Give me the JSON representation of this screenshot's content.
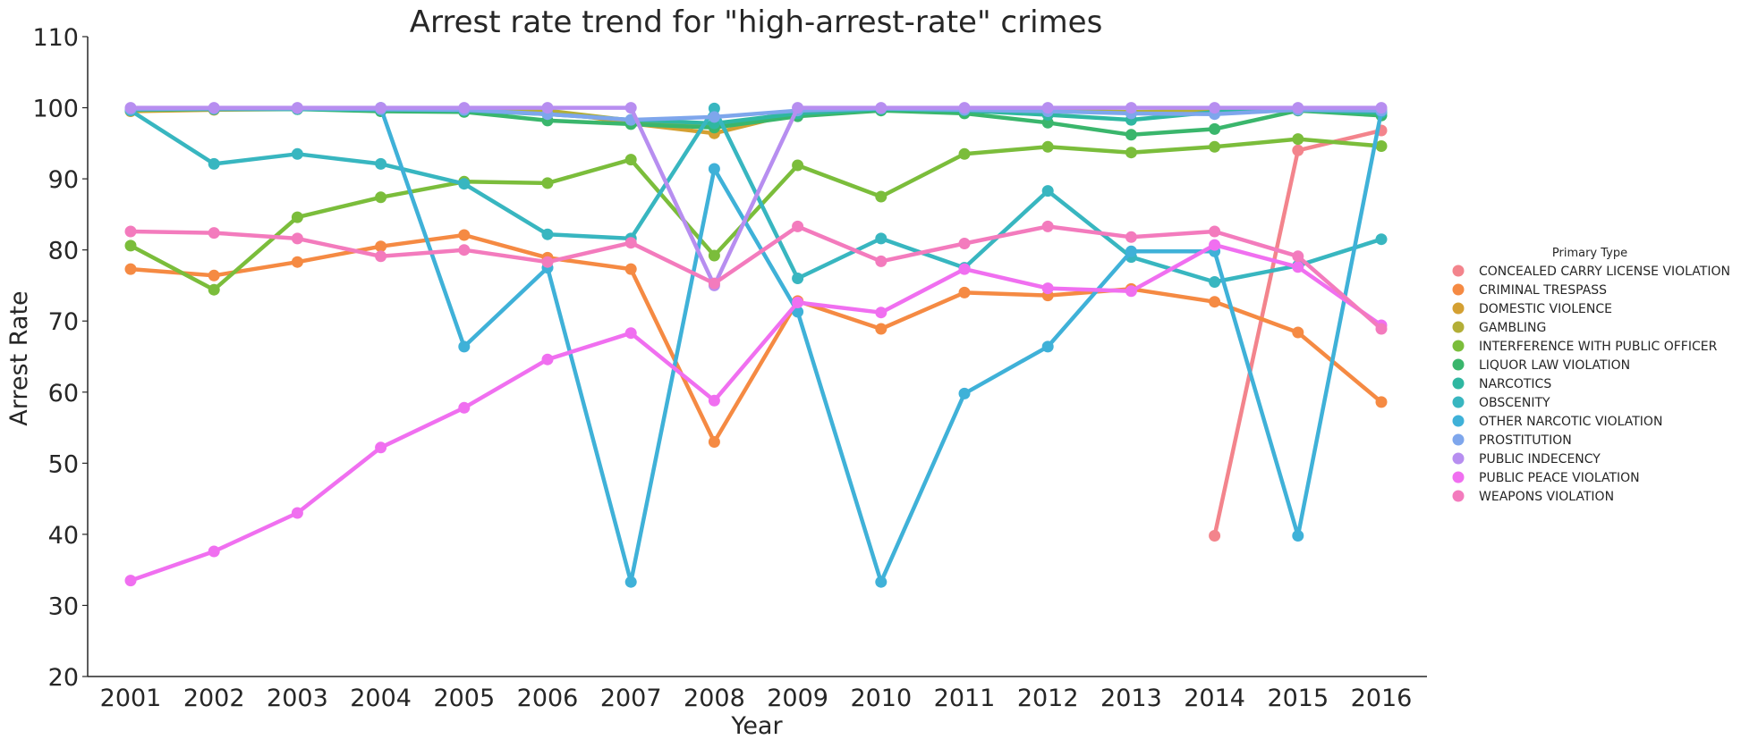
{
  "chart_data": {
    "type": "line",
    "title": "Arrest rate trend for \"high-arrest-rate\" crimes",
    "xlabel": "Year",
    "ylabel": "Arrest Rate",
    "ylim": [
      20,
      110
    ],
    "yticks": [
      20,
      30,
      40,
      50,
      60,
      70,
      80,
      90,
      100,
      110
    ],
    "categories": [
      "2001",
      "2002",
      "2003",
      "2004",
      "2005",
      "2006",
      "2007",
      "2008",
      "2009",
      "2010",
      "2011",
      "2012",
      "2013",
      "2014",
      "2015",
      "2016"
    ],
    "grid": false,
    "legend_title": "Primary Type",
    "legend_position": "right",
    "series": [
      {
        "name": "CONCEALED CARRY LICENSE VIOLATION",
        "color": "#f3848c",
        "values": [
          null,
          null,
          null,
          null,
          null,
          null,
          null,
          null,
          null,
          null,
          null,
          null,
          null,
          39.8,
          94,
          96.8
        ]
      },
      {
        "name": "CRIMINAL TRESPASS",
        "color": "#f58a43",
        "values": [
          77.3,
          76.4,
          78.3,
          80.5,
          82.1,
          78.9,
          77.3,
          53,
          72.8,
          68.9,
          74,
          73.6,
          74.5,
          72.7,
          68.4,
          58.6
        ]
      },
      {
        "name": "DOMESTIC VIOLENCE",
        "color": "#d4a032",
        "values": [
          99.5,
          99.7,
          99.8,
          99.8,
          99.7,
          99.6,
          97.8,
          96.4,
          99.3,
          99.8,
          99.7,
          99.5,
          99.3,
          99.5,
          99.8,
          99.6
        ]
      },
      {
        "name": "GAMBLING",
        "color": "#b3ae37",
        "values": [
          99.6,
          99.8,
          99.9,
          99.8,
          99.7,
          99.6,
          98.2,
          97.2,
          99.5,
          99.8,
          99.8,
          99.6,
          99.4,
          99.6,
          99.8,
          99.7
        ]
      },
      {
        "name": "INTERFERENCE WITH PUBLIC OFFICER",
        "color": "#7bbd3b",
        "values": [
          80.6,
          74.4,
          84.6,
          87.4,
          89.6,
          89.4,
          92.7,
          79.2,
          91.9,
          87.5,
          93.5,
          94.5,
          93.7,
          94.5,
          95.6,
          94.6
        ]
      },
      {
        "name": "LIQUOR LAW VIOLATION",
        "color": "#3ab66c",
        "values": [
          99.7,
          99.8,
          99.8,
          99.5,
          99.4,
          98.2,
          97.7,
          97.2,
          98.8,
          99.6,
          99.2,
          97.9,
          96.2,
          97,
          99.6,
          98.9
        ]
      },
      {
        "name": "NARCOTICS",
        "color": "#2fb7a1",
        "values": [
          99.8,
          99.8,
          99.8,
          99.7,
          99.6,
          99.1,
          98.3,
          97.8,
          99.2,
          99.8,
          99.6,
          99,
          98.3,
          99.4,
          99.7,
          99.3
        ]
      },
      {
        "name": "OBSCENITY",
        "color": "#38b6c0",
        "values": [
          99.6,
          92.1,
          93.5,
          92.1,
          89.3,
          82.2,
          81.6,
          99.9,
          76,
          81.6,
          77.5,
          88.3,
          79,
          75.5,
          77.8,
          81.5
        ]
      },
      {
        "name": "OTHER NARCOTIC VIOLATION",
        "color": "#3fb1d8",
        "values": [
          null,
          null,
          null,
          100,
          66.4,
          77.5,
          33.3,
          91.4,
          71.3,
          33.3,
          59.8,
          66.4,
          79.8,
          79.8,
          39.8,
          99.5
        ]
      },
      {
        "name": "PROSTITUTION",
        "color": "#7ea6ec",
        "values": [
          99.8,
          99.9,
          99.9,
          99.8,
          99.7,
          99.1,
          98.3,
          98.7,
          99.6,
          99.9,
          99.7,
          99.5,
          99.2,
          99.1,
          99.7,
          99.6
        ]
      },
      {
        "name": "PUBLIC INDECENCY",
        "color": "#b78ef0",
        "values": [
          100,
          100,
          100,
          100,
          100,
          100,
          100,
          75,
          100,
          100,
          100,
          100,
          100,
          100,
          100,
          100
        ]
      },
      {
        "name": "PUBLIC PEACE VIOLATION",
        "color": "#f06ff0",
        "values": [
          33.5,
          37.6,
          43,
          52.2,
          57.8,
          64.6,
          68.3,
          58.8,
          72.6,
          71.2,
          77.3,
          74.6,
          74.2,
          80.7,
          77.6,
          69.4
        ]
      },
      {
        "name": "WEAPONS VIOLATION",
        "color": "#f37bbd",
        "values": [
          82.6,
          82.4,
          81.6,
          79.1,
          80,
          78.3,
          81,
          75.3,
          83.3,
          78.4,
          80.9,
          83.3,
          81.8,
          82.6,
          79.1,
          68.9
        ]
      }
    ]
  }
}
